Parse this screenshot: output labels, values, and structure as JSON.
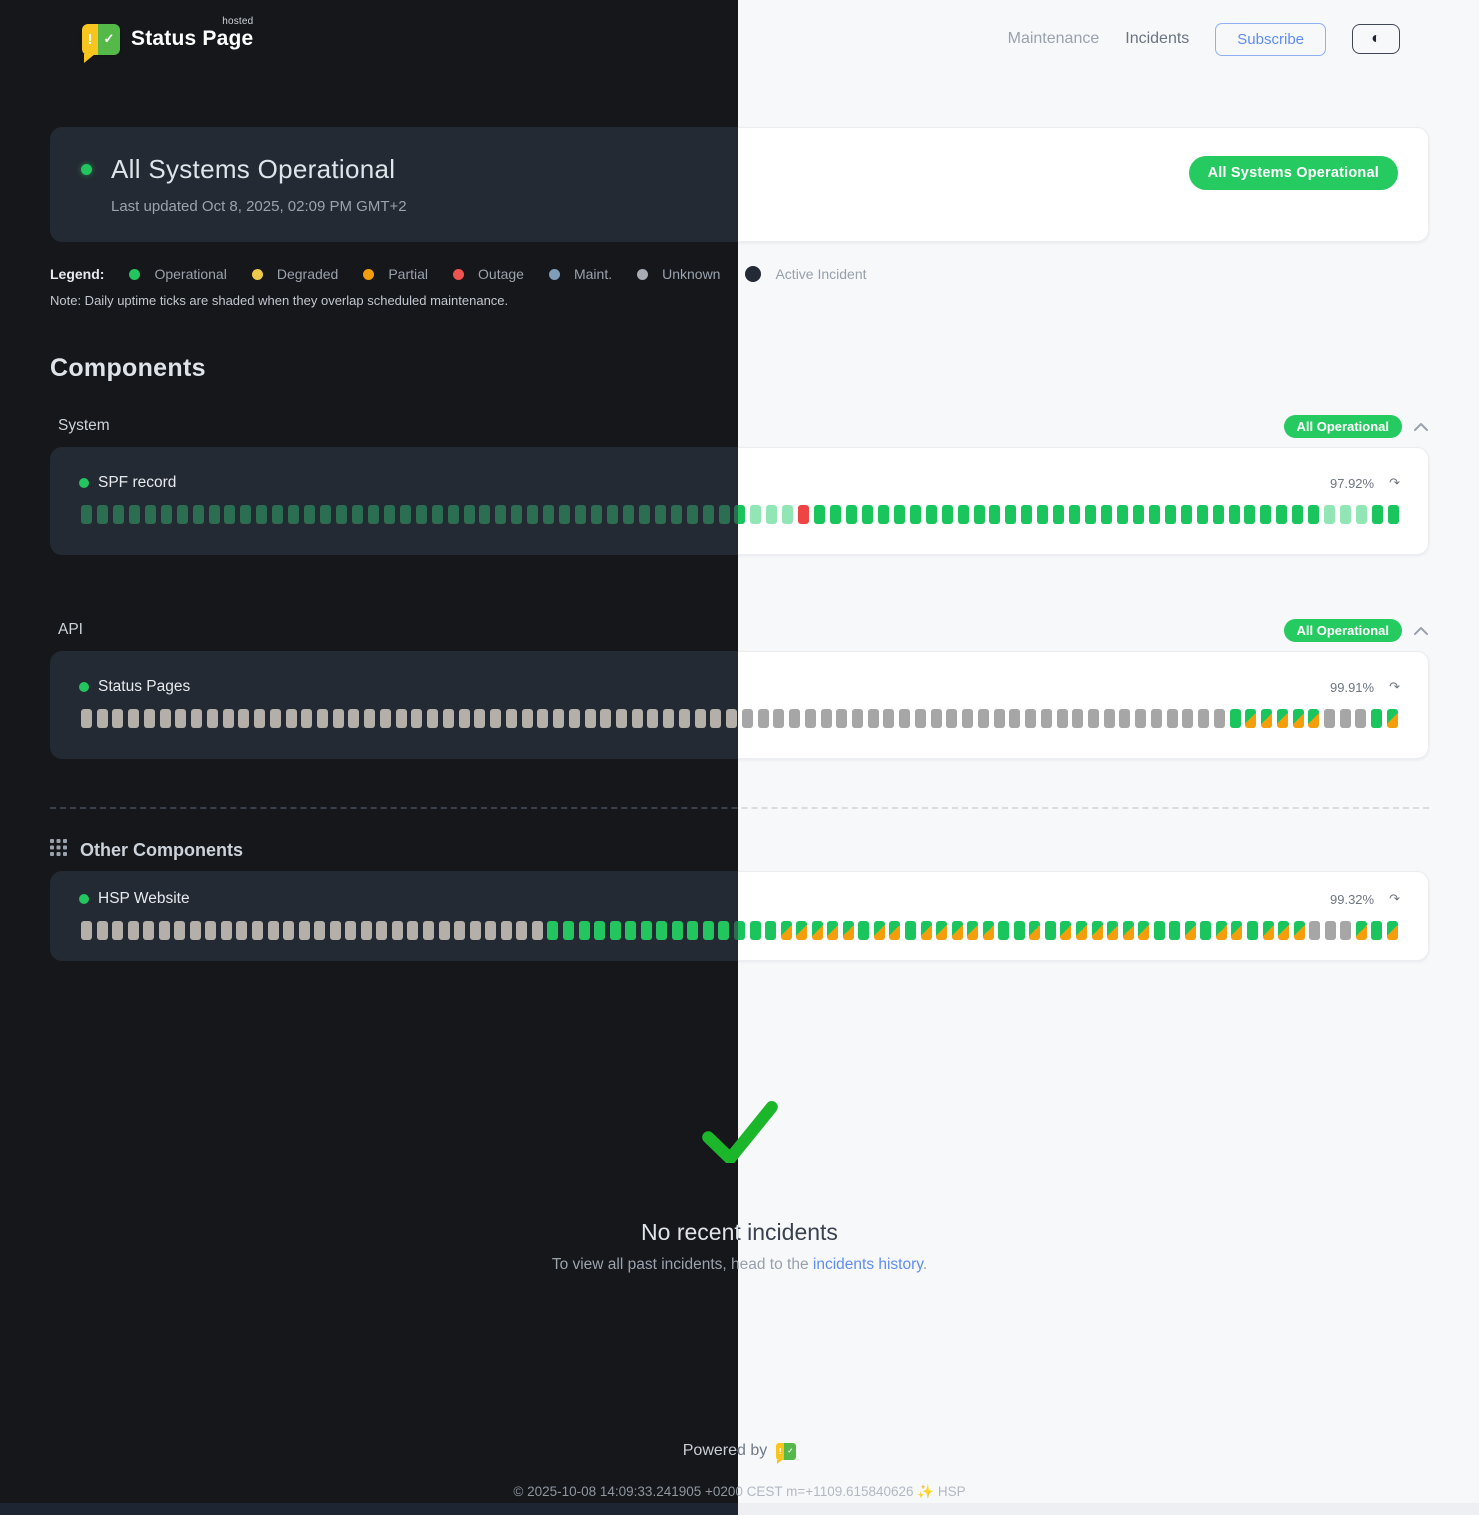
{
  "header": {
    "brand": {
      "name": "Status Page",
      "superscript": "hosted"
    },
    "nav": [
      {
        "label": "Maintenance"
      },
      {
        "label": "Incidents"
      }
    ],
    "subscribe_label": "Subscribe",
    "theme_toggle_icon": "◐"
  },
  "banner": {
    "title": "All Systems Operational",
    "last_updated": "Last updated Oct 8, 2025, 02:09 PM GMT+2",
    "badge": "All Systems Operational",
    "status_color": "#25ca60"
  },
  "legend": {
    "label": "Legend:",
    "items": [
      {
        "label": "Operational",
        "color": "#22c55e"
      },
      {
        "label": "Degraded",
        "color": "#ecc94b"
      },
      {
        "label": "Partial",
        "color": "#f59e0b"
      },
      {
        "label": "Outage",
        "color": "#ef5350"
      },
      {
        "label": "Maint.",
        "color": "#7f9db8"
      },
      {
        "label": "Unknown",
        "color": "#a8adb5"
      },
      {
        "label": "Active Incident",
        "color": "#232a36"
      }
    ],
    "note": "Note: Daily uptime ticks are shaded when they overlap scheduled maintenance."
  },
  "components": {
    "heading": "Components",
    "tick_legend": {
      "o": "operational",
      "b": "operational-bright",
      "s": "shaded-maintenance",
      "r": "outage",
      "u": "unknown",
      "d": "degraded-partial"
    },
    "groups": [
      {
        "name": "System",
        "badge": "All Operational",
        "items": [
          {
            "name": "SPF record",
            "uptime": "97.92%",
            "ticks": "oooooooooooooooooooooooooooooooooooooooooosssroooooooooooooooooooooooooooooooosssoo"
          }
        ]
      },
      {
        "name": "API",
        "badge": "All Operational",
        "items": [
          {
            "name": "Status Pages",
            "uptime": "99.91%",
            "ticks": "uuuuuuuuuuuuuuuuuuuuuuuuuuuuuuuuuuuuuuuuuuuuuuuuuuuuuuuuuuuuuuuuuuuuuuuuuoddddduuuod"
          }
        ]
      }
    ],
    "other": {
      "heading": "Other Components",
      "items": [
        {
          "name": "HSP Website",
          "uptime": "99.32%",
          "ticks": "uuuuuuuuuuuuuuuuuuuuuuuuuuuuuubbbbbbbbbbbbooodddddoddoddddd00dodddddd00dodd0ddduuudod"
        }
      ]
    }
  },
  "incidents": {
    "title": "No recent incidents",
    "subtitle_prefix": "To view all past incidents, head to the ",
    "link_text": "incidents history",
    "subtitle_suffix": ".",
    "check_color": "#1bb62a"
  },
  "footer": {
    "powered_by": "Powered by",
    "copyright": "© 2025-10-08 14:09:33.241905 +0200 CEST m=+1109.615840626 ✨ HSP"
  }
}
